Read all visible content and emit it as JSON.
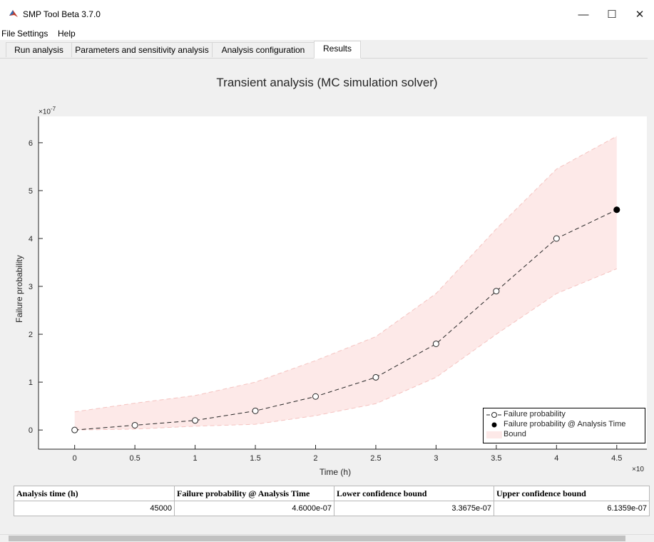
{
  "window": {
    "title": "SMP Tool Beta 3.7.0",
    "minimize": "—",
    "maximize": "☐",
    "close": "✕"
  },
  "menu": [
    "File",
    "Settings",
    "Help"
  ],
  "tabs": [
    {
      "label": "Run analysis"
    },
    {
      "label": "Parameters and sensitivity analysis"
    },
    {
      "label": "Analysis configuration"
    },
    {
      "label": "Results",
      "active": true
    }
  ],
  "chart_data": {
    "type": "line",
    "title": "Transient analysis (MC simulation solver)",
    "xlabel": "Time (h)",
    "ylabel": "Failure probability",
    "y_exponent_label": "×10",
    "y_exponent": "-7",
    "x_exponent_label": "×10",
    "xlim": [
      -0.3,
      4.75
    ],
    "ylim": [
      -0.4,
      6.55
    ],
    "x_ticks": [
      "0",
      "0.5",
      "1",
      "1.5",
      "2",
      "2.5",
      "3",
      "3.5",
      "4",
      "4.5"
    ],
    "y_ticks": [
      "0",
      "1",
      "2",
      "3",
      "4",
      "5",
      "6"
    ],
    "x": [
      0,
      0.5,
      1,
      1.5,
      2,
      2.5,
      3,
      3.5,
      4,
      4.5
    ],
    "series": [
      {
        "name": "Failure probability",
        "values": [
          0,
          0.1,
          0.2,
          0.4,
          0.7,
          1.1,
          1.8,
          2.9,
          4.0,
          4.6
        ]
      },
      {
        "name": "Failure probability @ Analysis Time",
        "x": [
          4.5
        ],
        "values": [
          4.6
        ]
      },
      {
        "name": "Bound",
        "lower": [
          0,
          0.02,
          0.08,
          0.12,
          0.3,
          0.55,
          1.1,
          2.0,
          2.85,
          3.3675
        ],
        "upper": [
          0.38,
          0.56,
          0.72,
          1.0,
          1.45,
          1.95,
          2.85,
          4.2,
          5.45,
          6.1359
        ]
      }
    ],
    "legend_position": "bottom-right",
    "colors": {
      "line": "#262626",
      "band": "#fde9e8",
      "band_edge": "#f5c3c0",
      "axes_bg": "#ffffff",
      "outer_bg": "#f0f0f0"
    }
  },
  "results_table": {
    "headers": [
      "Analysis time (h)",
      "Failure probability @ Analysis Time",
      "Lower confidence bound",
      "Upper confidence bound"
    ],
    "row": [
      "45000",
      "4.6000e-07",
      "3.3675e-07",
      "6.1359e-07"
    ]
  }
}
